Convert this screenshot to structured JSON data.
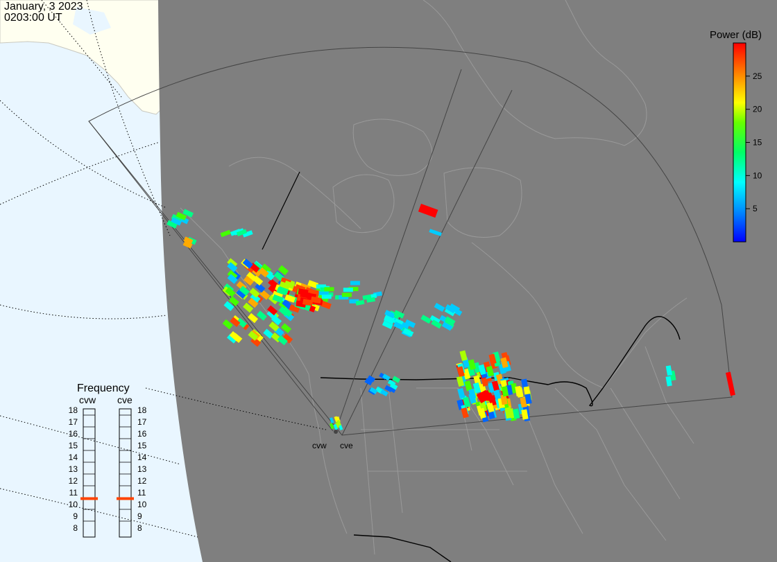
{
  "header": {
    "date": "January, 3 2023",
    "time": "0203:00 UT"
  },
  "colorbar": {
    "title": "Power (dB)",
    "ticks": [
      25,
      20,
      15,
      10,
      5
    ],
    "range": [
      0,
      30
    ],
    "colors": [
      "#0000ff",
      "#0088ff",
      "#00ffff",
      "#00ff66",
      "#66ff00",
      "#ffff00",
      "#ff9900",
      "#ff0000"
    ]
  },
  "frequency": {
    "title": "Frequency",
    "columns": [
      {
        "label": "cvw",
        "selected": 10.5
      },
      {
        "label": "cve",
        "selected": 10.5
      }
    ],
    "levels": [
      18,
      17,
      16,
      15,
      14,
      13,
      12,
      11,
      10,
      9,
      8
    ],
    "marker_color": "#ff4400"
  },
  "radars": [
    {
      "label": "cvw"
    },
    {
      "label": "cve"
    }
  ],
  "colors": {
    "land": "#7f7f7f",
    "ocean": "#e9f6ff",
    "alaska": "#fffff0",
    "coast": "#9a9a9a",
    "border": "#000000"
  }
}
